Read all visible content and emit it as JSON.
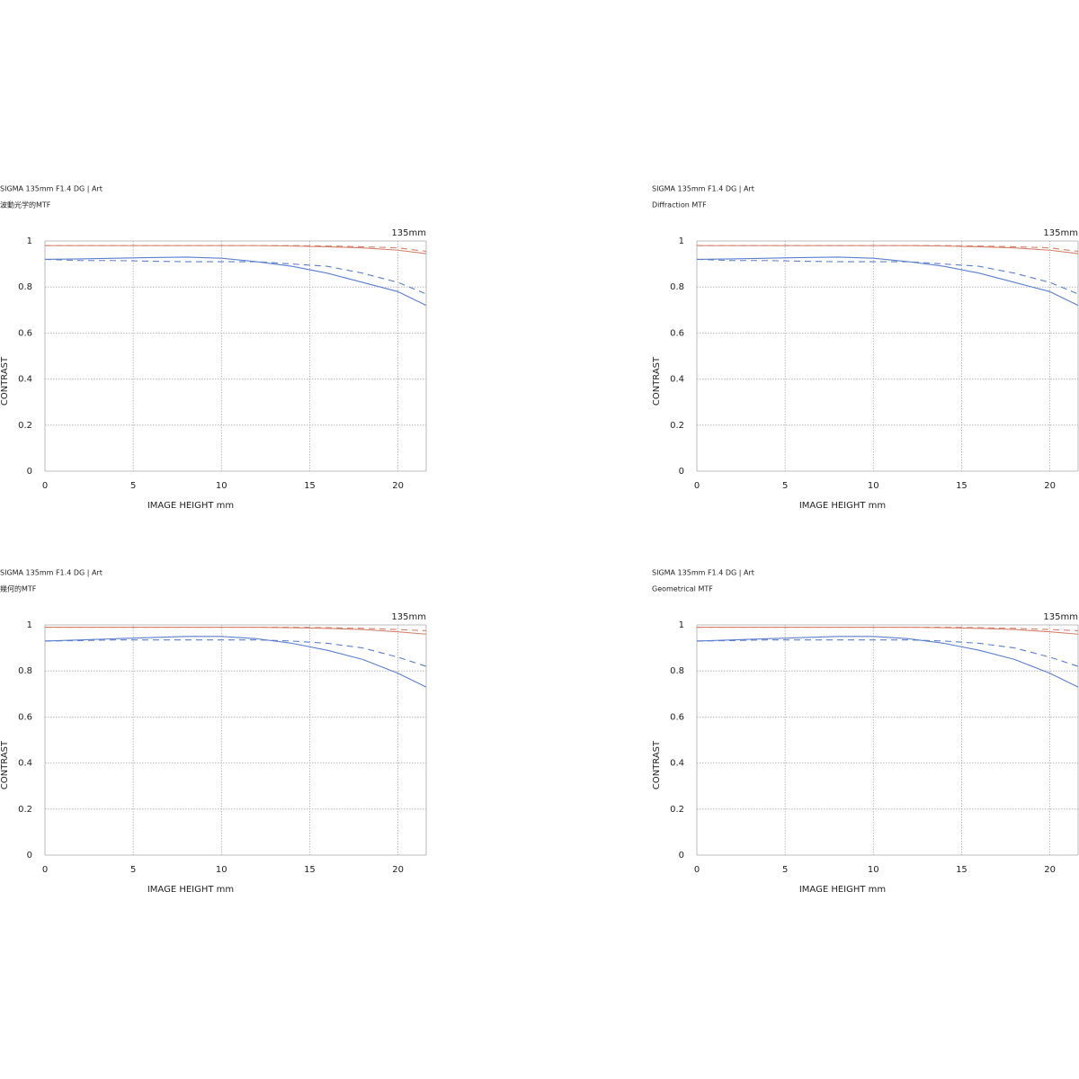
{
  "chart_data": [
    {
      "type": "line",
      "title": "SIGMA 135mm F1.4 DG | Art",
      "subtitle": "波動光学的MTF",
      "annotation": "135mm",
      "x_label": "IMAGE HEIGHT  mm",
      "y_label": "CONTRAST",
      "x": [
        0,
        2,
        4,
        6,
        8,
        10,
        12,
        14,
        16,
        18,
        20,
        21.6
      ],
      "xlim": [
        0,
        21.6
      ],
      "ylim": [
        0,
        1
      ],
      "xticks": [
        0,
        5,
        10,
        15,
        20
      ],
      "yticks": [
        0,
        0.2,
        0.4,
        0.6,
        0.8,
        1
      ],
      "grid": true,
      "series": [
        {
          "color": "#d4806a",
          "dashed": false,
          "values": [
            0.98,
            0.98,
            0.98,
            0.98,
            0.98,
            0.98,
            0.98,
            0.978,
            0.975,
            0.97,
            0.96,
            0.945
          ]
        },
        {
          "color": "#d4806a",
          "dashed": true,
          "values": [
            0.98,
            0.98,
            0.98,
            0.98,
            0.98,
            0.98,
            0.98,
            0.98,
            0.978,
            0.975,
            0.97,
            0.955
          ]
        },
        {
          "color": "#5b7fcf",
          "dashed": false,
          "values": [
            0.92,
            0.922,
            0.925,
            0.928,
            0.93,
            0.925,
            0.91,
            0.89,
            0.86,
            0.82,
            0.78,
            0.72
          ]
        },
        {
          "color": "#5b7fcf",
          "dashed": true,
          "values": [
            0.92,
            0.915,
            0.915,
            0.912,
            0.91,
            0.91,
            0.91,
            0.9,
            0.89,
            0.86,
            0.82,
            0.77
          ]
        }
      ]
    },
    {
      "type": "line",
      "title": "SIGMA 135mm F1.4 DG | Art",
      "subtitle": "Diffraction MTF",
      "annotation": "135mm",
      "x_label": "IMAGE HEIGHT  mm",
      "y_label": "CONTRAST",
      "x": [
        0,
        2,
        4,
        6,
        8,
        10,
        12,
        14,
        16,
        18,
        20,
        21.6
      ],
      "xlim": [
        0,
        21.6
      ],
      "ylim": [
        0,
        1
      ],
      "xticks": [
        0,
        5,
        10,
        15,
        20
      ],
      "yticks": [
        0,
        0.2,
        0.4,
        0.6,
        0.8,
        1
      ],
      "grid": true,
      "series": [
        {
          "color": "#d4806a",
          "dashed": false,
          "values": [
            0.98,
            0.98,
            0.98,
            0.98,
            0.98,
            0.98,
            0.98,
            0.978,
            0.975,
            0.97,
            0.96,
            0.945
          ]
        },
        {
          "color": "#d4806a",
          "dashed": true,
          "values": [
            0.98,
            0.98,
            0.98,
            0.98,
            0.98,
            0.98,
            0.98,
            0.98,
            0.978,
            0.975,
            0.97,
            0.955
          ]
        },
        {
          "color": "#5b7fcf",
          "dashed": false,
          "values": [
            0.92,
            0.922,
            0.925,
            0.928,
            0.93,
            0.925,
            0.91,
            0.89,
            0.86,
            0.82,
            0.78,
            0.72
          ]
        },
        {
          "color": "#5b7fcf",
          "dashed": true,
          "values": [
            0.92,
            0.915,
            0.915,
            0.912,
            0.91,
            0.91,
            0.91,
            0.9,
            0.89,
            0.86,
            0.82,
            0.77
          ]
        }
      ]
    },
    {
      "type": "line",
      "title": "SIGMA 135mm F1.4 DG | Art",
      "subtitle": "幾何的MTF",
      "annotation": "135mm",
      "x_label": "IMAGE HEIGHT  mm",
      "y_label": "CONTRAST",
      "x": [
        0,
        2,
        4,
        6,
        8,
        10,
        12,
        14,
        16,
        18,
        20,
        21.6
      ],
      "xlim": [
        0,
        21.6
      ],
      "ylim": [
        0,
        1
      ],
      "xticks": [
        0,
        5,
        10,
        15,
        20
      ],
      "yticks": [
        0,
        0.2,
        0.4,
        0.6,
        0.8,
        1
      ],
      "grid": true,
      "series": [
        {
          "color": "#d4806a",
          "dashed": false,
          "values": [
            0.99,
            0.99,
            0.99,
            0.99,
            0.99,
            0.99,
            0.99,
            0.988,
            0.985,
            0.98,
            0.97,
            0.96
          ]
        },
        {
          "color": "#d4806a",
          "dashed": true,
          "values": [
            0.99,
            0.99,
            0.99,
            0.99,
            0.99,
            0.99,
            0.99,
            0.99,
            0.988,
            0.985,
            0.98,
            0.975
          ]
        },
        {
          "color": "#5b7fcf",
          "dashed": false,
          "values": [
            0.93,
            0.935,
            0.94,
            0.945,
            0.95,
            0.95,
            0.94,
            0.92,
            0.89,
            0.85,
            0.79,
            0.73
          ]
        },
        {
          "color": "#5b7fcf",
          "dashed": true,
          "values": [
            0.93,
            0.932,
            0.935,
            0.935,
            0.935,
            0.935,
            0.935,
            0.93,
            0.92,
            0.9,
            0.86,
            0.82
          ]
        }
      ]
    },
    {
      "type": "line",
      "title": "SIGMA 135mm F1.4 DG | Art",
      "subtitle": "Geometrical MTF",
      "annotation": "135mm",
      "x_label": "IMAGE HEIGHT  mm",
      "y_label": "CONTRAST",
      "x": [
        0,
        2,
        4,
        6,
        8,
        10,
        12,
        14,
        16,
        18,
        20,
        21.6
      ],
      "xlim": [
        0,
        21.6
      ],
      "ylim": [
        0,
        1
      ],
      "xticks": [
        0,
        5,
        10,
        15,
        20
      ],
      "yticks": [
        0,
        0.2,
        0.4,
        0.6,
        0.8,
        1
      ],
      "grid": true,
      "series": [
        {
          "color": "#d4806a",
          "dashed": false,
          "values": [
            0.99,
            0.99,
            0.99,
            0.99,
            0.99,
            0.99,
            0.99,
            0.988,
            0.985,
            0.98,
            0.97,
            0.96
          ]
        },
        {
          "color": "#d4806a",
          "dashed": true,
          "values": [
            0.99,
            0.99,
            0.99,
            0.99,
            0.99,
            0.99,
            0.99,
            0.99,
            0.988,
            0.985,
            0.98,
            0.975
          ]
        },
        {
          "color": "#5b7fcf",
          "dashed": false,
          "values": [
            0.93,
            0.935,
            0.94,
            0.945,
            0.95,
            0.95,
            0.94,
            0.92,
            0.89,
            0.85,
            0.79,
            0.73
          ]
        },
        {
          "color": "#5b7fcf",
          "dashed": true,
          "values": [
            0.93,
            0.932,
            0.935,
            0.935,
            0.935,
            0.935,
            0.935,
            0.93,
            0.92,
            0.9,
            0.86,
            0.82
          ]
        }
      ]
    }
  ]
}
